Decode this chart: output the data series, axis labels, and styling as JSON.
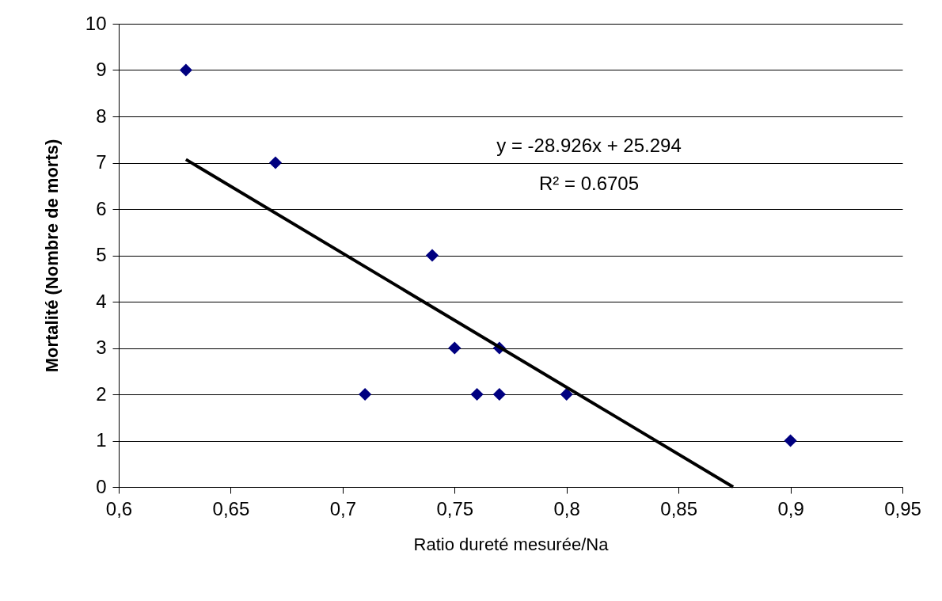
{
  "chart_data": {
    "type": "scatter",
    "xlabel": "Ratio dureté mesurée/Na",
    "ylabel": "Mortalité (Nombre de morts)",
    "xlim": [
      0.6,
      0.95
    ],
    "ylim": [
      0,
      10
    ],
    "xticks": [
      {
        "value": 0.6,
        "label": "0,6"
      },
      {
        "value": 0.65,
        "label": "0,65"
      },
      {
        "value": 0.7,
        "label": "0,7"
      },
      {
        "value": 0.75,
        "label": "0,75"
      },
      {
        "value": 0.8,
        "label": "0,8"
      },
      {
        "value": 0.85,
        "label": "0,85"
      },
      {
        "value": 0.9,
        "label": "0,9"
      },
      {
        "value": 0.95,
        "label": "0,95"
      }
    ],
    "yticks": [
      0,
      1,
      2,
      3,
      4,
      5,
      6,
      7,
      8,
      9,
      10
    ],
    "grid": "y",
    "series": [
      {
        "color": "#000080",
        "marker": "diamond",
        "x": [
          0.63,
          0.67,
          0.71,
          0.74,
          0.75,
          0.76,
          0.77,
          0.77,
          0.8,
          0.9
        ],
        "values": [
          9,
          7,
          2,
          5,
          3,
          2,
          3,
          2,
          2,
          1
        ]
      },
      {
        "type": "line",
        "color": "#000000",
        "x": [
          0.63,
          0.8744
        ],
        "values": [
          7.07,
          0
        ]
      }
    ],
    "annotations": [
      "y = -28.926x + 25.294",
      "R² = 0.6705"
    ]
  }
}
